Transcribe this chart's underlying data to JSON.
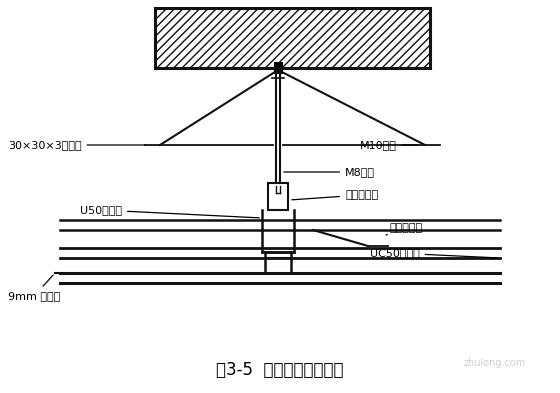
{
  "title": "图3-5  石膏板吊顶剖面图",
  "bg_color": "#ffffff",
  "line_color": "#111111",
  "labels": {
    "angle_steel": "30×30×3角钢件",
    "bolt": "M10胀栓",
    "hanger": "M8吊筋",
    "main_clip": "主龙骨吊件",
    "main_keel": "U50主龙骨",
    "sec_clip": "次龙骨吊件",
    "sec_keel": "UC50次龙骨",
    "board": "9mm 石膏板"
  },
  "watermark": "zhulong.com",
  "fig_w": 5.6,
  "fig_h": 3.93,
  "dpi": 100
}
